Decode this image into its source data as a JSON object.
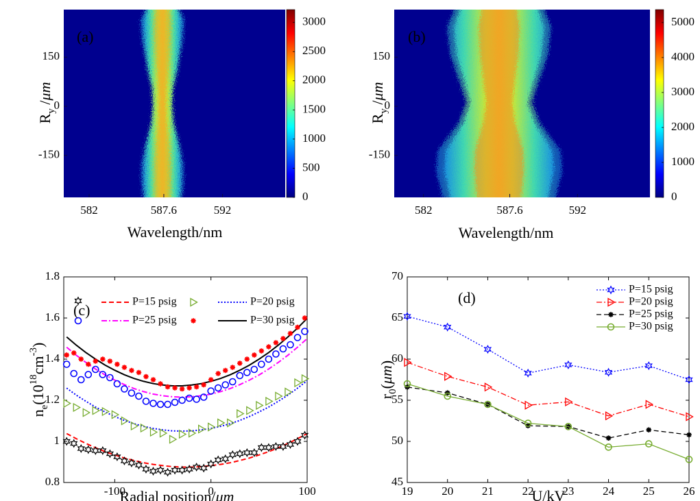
{
  "chart_data": [
    {
      "type": "heatmap",
      "label": "(a)",
      "xlabel": "Wavelength/nm",
      "ylabel": [
        "R",
        "y",
        " /",
        "μm"
      ],
      "xlim": [
        580.1,
        596.7
      ],
      "xticks": [
        582,
        587.6,
        592
      ],
      "ylim": [
        -278,
        295
      ],
      "yticks": [
        -150,
        0,
        150
      ],
      "colormap": "jet",
      "clim": [
        0,
        3220
      ],
      "cticks": [
        0,
        500,
        1000,
        1500,
        2000,
        2500,
        3000
      ]
    },
    {
      "type": "heatmap",
      "label": "(b)",
      "xlabel": "Wavelength/nm",
      "ylabel": [
        "R",
        "y",
        " /",
        "μm"
      ],
      "xlim": [
        580.1,
        596.7
      ],
      "xticks": [
        582,
        587.6,
        592
      ],
      "ylim": [
        -278,
        295
      ],
      "yticks": [
        -150,
        0,
        150
      ],
      "colormap": "jet",
      "clim": [
        0,
        5370
      ],
      "cticks": [
        0,
        1000,
        2000,
        3000,
        4000,
        5000
      ]
    },
    {
      "type": "scatter",
      "label": "(c)",
      "xlabel": [
        "Radial position/",
        "μm"
      ],
      "ylabel": [
        "n",
        "e",
        "(10",
        "18",
        "cm",
        "-3",
        ")"
      ],
      "xlim": [
        -153,
        100
      ],
      "xticks": [
        -100,
        0,
        100
      ],
      "ylim": [
        0.8,
        1.8
      ],
      "yticks": [
        0.8,
        1,
        1.2,
        1.4,
        1.6,
        1.8
      ],
      "legend": "upper center",
      "legend_columns": 2,
      "series": [
        {
          "name": "P=15 psig",
          "color": "#000000",
          "marker": "hexagram",
          "x": [
            -150,
            -142.5,
            -135,
            -127.5,
            -120,
            -112.5,
            -105,
            -97.5,
            -90,
            -82.5,
            -75,
            -67.5,
            -60,
            -52.5,
            -45,
            -37.5,
            -30,
            -22.5,
            -15,
            -7.5,
            0,
            7.5,
            15,
            22.5,
            30,
            37.5,
            45,
            52.5,
            60,
            67.5,
            75,
            82.5,
            90,
            97.5
          ],
          "values": [
            1.0,
            0.99,
            0.965,
            0.96,
            0.955,
            0.955,
            0.94,
            0.925,
            0.905,
            0.895,
            0.885,
            0.865,
            0.855,
            0.86,
            0.85,
            0.86,
            0.86,
            0.865,
            0.875,
            0.87,
            0.89,
            0.91,
            0.915,
            0.935,
            0.94,
            0.945,
            0.945,
            0.97,
            0.97,
            0.975,
            0.975,
            0.985,
            1.0,
            1.03
          ],
          "fit": {
            "color": "#ff0000",
            "dash": "dashed",
            "x": [
              -150,
              -140,
              -130,
              -120,
              -110,
              -100,
              -90,
              -80,
              -70,
              -60,
              -50,
              -40,
              -30,
              -20,
              -10,
              0,
              10,
              20,
              30,
              40,
              50,
              60,
              70,
              80,
              90,
              100
            ],
            "values": [
              1.038,
              1.013,
              0.99,
              0.969,
              0.95,
              0.934,
              0.919,
              0.907,
              0.896,
              0.888,
              0.882,
              0.877,
              0.875,
              0.875,
              0.877,
              0.882,
              0.888,
              0.896,
              0.907,
              0.919,
              0.934,
              0.95,
              0.969,
              0.99,
              1.013,
              1.038
            ]
          }
        },
        {
          "name": "P=20 psig",
          "color": "#77ac30",
          "marker": "triangle-right",
          "x": [
            -150,
            -140,
            -130,
            -120,
            -110,
            -100,
            -90,
            -80,
            -70,
            -60,
            -50,
            -40,
            -30,
            -20,
            -10,
            0,
            10,
            20,
            30,
            40,
            50,
            60,
            70,
            80,
            90,
            97.5
          ],
          "values": [
            1.185,
            1.165,
            1.14,
            1.15,
            1.145,
            1.13,
            1.1,
            1.075,
            1.065,
            1.045,
            1.04,
            1.01,
            1.035,
            1.04,
            1.06,
            1.07,
            1.09,
            1.09,
            1.135,
            1.15,
            1.175,
            1.195,
            1.22,
            1.24,
            1.285,
            1.305
          ],
          "fit": {
            "color": "#0000ff",
            "dash": "dotted",
            "x": [
              -150,
              -140,
              -130,
              -120,
              -110,
              -100,
              -90,
              -80,
              -70,
              -60,
              -50,
              -40,
              -30,
              -20,
              -10,
              0,
              10,
              20,
              30,
              40,
              50,
              60,
              70,
              80,
              90,
              100
            ],
            "values": [
              1.259,
              1.225,
              1.195,
              1.167,
              1.143,
              1.121,
              1.102,
              1.086,
              1.073,
              1.063,
              1.056,
              1.051,
              1.05,
              1.051,
              1.056,
              1.063,
              1.073,
              1.086,
              1.102,
              1.121,
              1.143,
              1.167,
              1.195,
              1.225,
              1.259,
              1.295
            ]
          }
        },
        {
          "name": "P=25 psig",
          "color": "#0000ff",
          "marker": "circle",
          "x": [
            -150,
            -142.5,
            -135,
            -127.5,
            -120,
            -112.5,
            -105,
            -97.5,
            -90,
            -82.5,
            -75,
            -67.5,
            -60,
            -52.5,
            -45,
            -37.5,
            -30,
            -22.5,
            -15,
            -7.5,
            0,
            7.5,
            15,
            22.5,
            30,
            37.5,
            45,
            52.5,
            60,
            67.5,
            75,
            82.5,
            90,
            97.5
          ],
          "values": [
            1.375,
            1.33,
            1.3,
            1.325,
            1.35,
            1.325,
            1.31,
            1.28,
            1.255,
            1.235,
            1.22,
            1.195,
            1.185,
            1.18,
            1.18,
            1.19,
            1.2,
            1.21,
            1.205,
            1.215,
            1.245,
            1.26,
            1.275,
            1.29,
            1.32,
            1.335,
            1.35,
            1.375,
            1.4,
            1.425,
            1.45,
            1.47,
            1.505,
            1.535
          ],
          "fit": {
            "color": "#ff00ff",
            "dash": "dashdot",
            "x": [
              -150,
              -140,
              -130,
              -120,
              -110,
              -100,
              -90,
              -80,
              -70,
              -60,
              -50,
              -40,
              -30,
              -20,
              -10,
              0,
              10,
              20,
              30,
              40,
              50,
              60,
              70,
              80,
              90,
              100
            ],
            "values": [
              1.458,
              1.419,
              1.384,
              1.352,
              1.323,
              1.298,
              1.276,
              1.257,
              1.242,
              1.23,
              1.222,
              1.217,
              1.215,
              1.217,
              1.222,
              1.23,
              1.242,
              1.257,
              1.276,
              1.298,
              1.323,
              1.352,
              1.384,
              1.419,
              1.458,
              1.5
            ]
          }
        },
        {
          "name": "P=30 psig",
          "color": "#ff0000",
          "marker": "asterisk",
          "x": [
            -150,
            -142.5,
            -135,
            -127.5,
            -120,
            -112.5,
            -105,
            -97.5,
            -90,
            -82.5,
            -75,
            -67.5,
            -60,
            -52.5,
            -45,
            -37.5,
            -30,
            -22.5,
            -15,
            -7.5,
            0,
            7.5,
            15,
            22.5,
            30,
            37.5,
            45,
            52.5,
            60,
            67.5,
            75,
            82.5,
            90,
            97.5
          ],
          "values": [
            1.42,
            1.43,
            1.4,
            1.375,
            1.39,
            1.4,
            1.39,
            1.375,
            1.36,
            1.345,
            1.335,
            1.315,
            1.3,
            1.28,
            1.265,
            1.26,
            1.255,
            1.26,
            1.265,
            1.275,
            1.3,
            1.33,
            1.345,
            1.36,
            1.38,
            1.4,
            1.42,
            1.44,
            1.46,
            1.48,
            1.5,
            1.525,
            1.555,
            1.6
          ],
          "fit": {
            "color": "#000000",
            "dash": "solid",
            "x": [
              -150,
              -140,
              -130,
              -120,
              -110,
              -100,
              -90,
              -80,
              -70,
              -60,
              -50,
              -40,
              -30,
              -20,
              -10,
              0,
              10,
              20,
              30,
              40,
              50,
              60,
              70,
              80,
              90,
              100
            ],
            "values": [
              1.508,
              1.468,
              1.432,
              1.4,
              1.371,
              1.346,
              1.324,
              1.306,
              1.292,
              1.281,
              1.274,
              1.27,
              1.27,
              1.274,
              1.281,
              1.292,
              1.306,
              1.324,
              1.346,
              1.371,
              1.4,
              1.432,
              1.468,
              1.508,
              1.551,
              1.598
            ]
          }
        }
      ]
    },
    {
      "type": "line",
      "label": "(d)",
      "xlabel": "U/kV",
      "ylabel": [
        "r",
        "0",
        "(",
        "μm",
        ")"
      ],
      "xlim": [
        19,
        26
      ],
      "xticks": [
        19,
        20,
        21,
        22,
        23,
        24,
        25,
        26
      ],
      "ylim": [
        45,
        70
      ],
      "yticks": [
        45,
        50,
        55,
        60,
        65,
        70
      ],
      "legend": "upper right",
      "x": [
        19,
        20,
        21,
        22,
        23,
        24,
        25,
        26
      ],
      "series": [
        {
          "name": "P=15 psig",
          "color": "#0000ff",
          "marker": "hexagram",
          "dash": "dotted",
          "values": [
            65.2,
            63.9,
            61.2,
            58.3,
            59.3,
            58.4,
            59.2,
            57.5
          ]
        },
        {
          "name": "P=20 psig",
          "color": "#ff0000",
          "marker": "triangle-right",
          "dash": "dashdot",
          "values": [
            59.6,
            57.9,
            56.6,
            54.4,
            54.8,
            53.1,
            54.5,
            53.0
          ]
        },
        {
          "name": "P=25 psig",
          "color": "#000000",
          "marker": "asterisk",
          "dash": "dashed",
          "values": [
            56.6,
            55.9,
            54.5,
            51.9,
            51.8,
            50.4,
            51.4,
            50.8
          ]
        },
        {
          "name": "P=30 psig",
          "color": "#77ac30",
          "marker": "circle",
          "dash": "solid",
          "values": [
            57.0,
            55.5,
            54.5,
            52.2,
            51.8,
            49.3,
            49.7,
            47.8
          ]
        }
      ]
    }
  ]
}
